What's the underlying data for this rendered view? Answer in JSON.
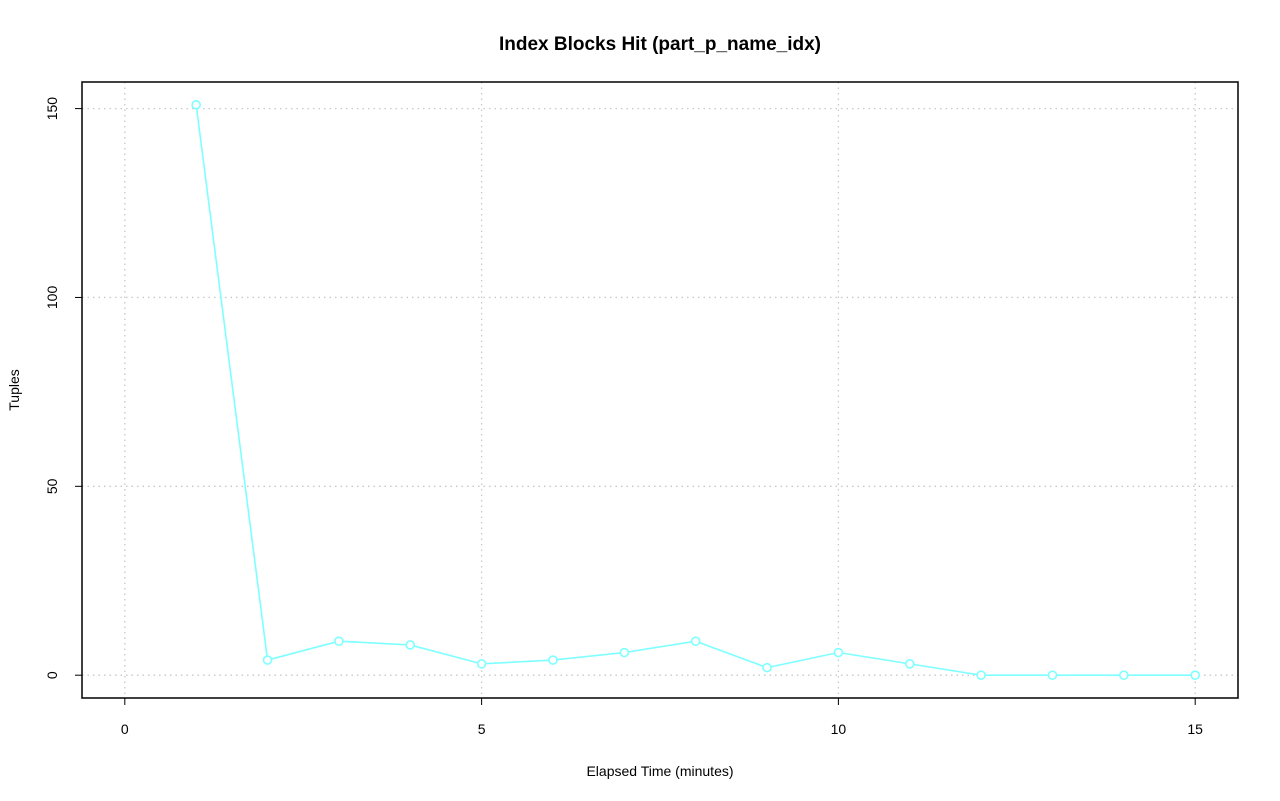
{
  "chart_data": {
    "type": "line",
    "title": "Index Blocks Hit (part_p_name_idx)",
    "x_label": "Elapsed Time (minutes)",
    "y_label": "Tuples",
    "x": [
      1,
      2,
      3,
      4,
      5,
      6,
      7,
      8,
      9,
      10,
      11,
      12,
      13,
      14,
      15
    ],
    "series": [
      {
        "name": "part_p_name_idx",
        "color": "#7fffff",
        "values": [
          151,
          4,
          9,
          8,
          3,
          4,
          6,
          9,
          2,
          6,
          3,
          0,
          0,
          0,
          0
        ]
      }
    ],
    "xlim": [
      -0.6,
      15.6
    ],
    "ylim": [
      -6.04,
      157.04
    ],
    "xticks": [
      0,
      5,
      10,
      15
    ],
    "yticks": [
      0,
      50,
      100,
      150
    ],
    "grid": true
  }
}
